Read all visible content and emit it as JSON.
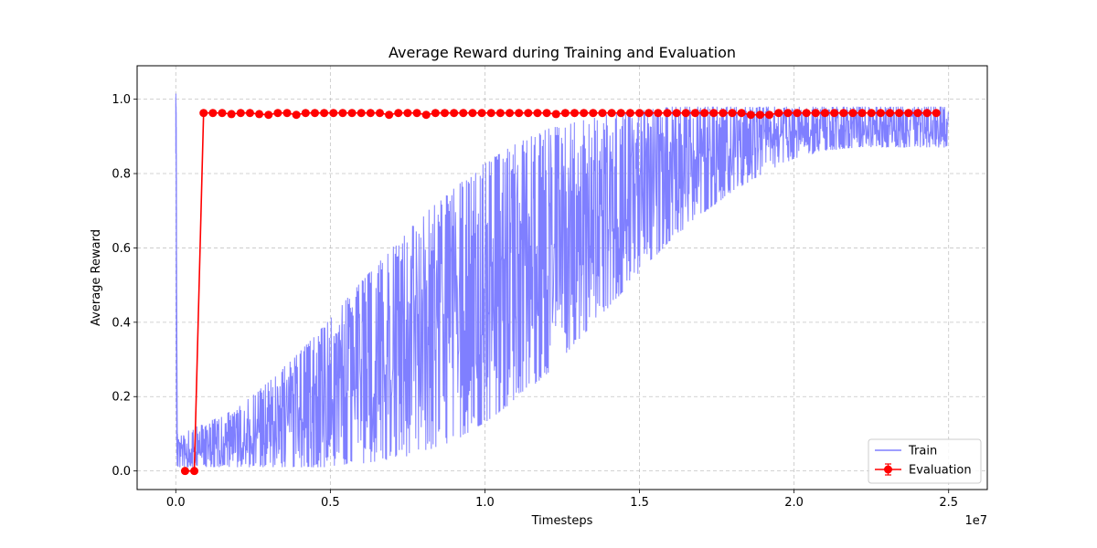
{
  "chart_data": {
    "type": "line",
    "title": "Average Reward during Training and Evaluation",
    "xlabel": "Timesteps",
    "ylabel": "Average Reward",
    "x_offset_label": "1e7",
    "xlim": [
      -0.125,
      2.625
    ],
    "ylim": [
      -0.05,
      1.09
    ],
    "x_ticks": [
      0.0,
      0.5,
      1.0,
      1.5,
      2.0,
      2.5
    ],
    "x_tick_labels": [
      "0.0",
      "0.5",
      "1.0",
      "1.5",
      "2.0",
      "2.5"
    ],
    "y_ticks": [
      0.0,
      0.2,
      0.4,
      0.6,
      0.8,
      1.0
    ],
    "y_tick_labels": [
      "0.0",
      "0.2",
      "0.4",
      "0.6",
      "0.8",
      "1.0"
    ],
    "grid": true,
    "legend_position": "bottom-right",
    "series": [
      {
        "name": "Train",
        "style": "line",
        "color": "#7f7fff",
        "x": [
          0.0,
          0.0005,
          0.001,
          0.002,
          0.003,
          0.005,
          0.1,
          0.2,
          0.3,
          0.4,
          0.5,
          0.6,
          0.7,
          0.8,
          0.9,
          1.0,
          1.1,
          1.2,
          1.3,
          1.4,
          1.5,
          1.6,
          1.7,
          1.8,
          1.9,
          2.0,
          2.1,
          2.2,
          2.3,
          2.4,
          2.5
        ],
        "lower": [
          0.84,
          0.85,
          0.88,
          0.2,
          0.05,
          0.01,
          0.01,
          0.01,
          0.01,
          0.01,
          0.01,
          0.02,
          0.03,
          0.05,
          0.08,
          0.13,
          0.19,
          0.26,
          0.35,
          0.44,
          0.53,
          0.62,
          0.69,
          0.75,
          0.8,
          0.84,
          0.86,
          0.87,
          0.87,
          0.87,
          0.87
        ],
        "upper": [
          1.03,
          1.02,
          1.0,
          0.95,
          0.6,
          0.1,
          0.13,
          0.17,
          0.24,
          0.32,
          0.41,
          0.51,
          0.6,
          0.69,
          0.76,
          0.83,
          0.88,
          0.92,
          0.94,
          0.96,
          0.97,
          0.98,
          0.98,
          0.98,
          0.98,
          0.98,
          0.98,
          0.98,
          0.98,
          0.98,
          0.98
        ]
      },
      {
        "name": "Evaluation",
        "style": "line+marker",
        "color": "#ff0000",
        "x": [
          0.03,
          0.06,
          0.09,
          0.12,
          0.15,
          0.18,
          0.21,
          0.24,
          0.27,
          0.3,
          0.33,
          0.36,
          0.39,
          0.42,
          0.45,
          0.48,
          0.51,
          0.54,
          0.57,
          0.6,
          0.63,
          0.66,
          0.69,
          0.72,
          0.75,
          0.78,
          0.81,
          0.84,
          0.87,
          0.9,
          0.93,
          0.96,
          0.99,
          1.02,
          1.05,
          1.08,
          1.11,
          1.14,
          1.17,
          1.2,
          1.23,
          1.26,
          1.29,
          1.32,
          1.35,
          1.38,
          1.41,
          1.44,
          1.47,
          1.5,
          1.53,
          1.56,
          1.59,
          1.62,
          1.65,
          1.68,
          1.71,
          1.74,
          1.77,
          1.8,
          1.83,
          1.86,
          1.89,
          1.92,
          1.95,
          1.98,
          2.01,
          2.04,
          2.07,
          2.1,
          2.13,
          2.16,
          2.19,
          2.22,
          2.25,
          2.28,
          2.31,
          2.34,
          2.37,
          2.4,
          2.43,
          2.46
        ],
        "y": [
          0.0,
          0.0,
          0.963,
          0.963,
          0.963,
          0.96,
          0.963,
          0.963,
          0.96,
          0.958,
          0.963,
          0.963,
          0.958,
          0.963,
          0.963,
          0.963,
          0.963,
          0.963,
          0.963,
          0.963,
          0.963,
          0.963,
          0.958,
          0.963,
          0.963,
          0.963,
          0.958,
          0.963,
          0.963,
          0.963,
          0.963,
          0.963,
          0.963,
          0.963,
          0.963,
          0.963,
          0.963,
          0.963,
          0.963,
          0.963,
          0.96,
          0.963,
          0.963,
          0.963,
          0.963,
          0.963,
          0.963,
          0.963,
          0.963,
          0.963,
          0.963,
          0.963,
          0.963,
          0.963,
          0.963,
          0.963,
          0.963,
          0.963,
          0.963,
          0.963,
          0.963,
          0.958,
          0.958,
          0.958,
          0.963,
          0.963,
          0.963,
          0.963,
          0.963,
          0.963,
          0.963,
          0.963,
          0.963,
          0.963,
          0.963,
          0.963,
          0.963,
          0.963,
          0.963,
          0.963,
          0.963,
          0.963
        ]
      }
    ]
  }
}
